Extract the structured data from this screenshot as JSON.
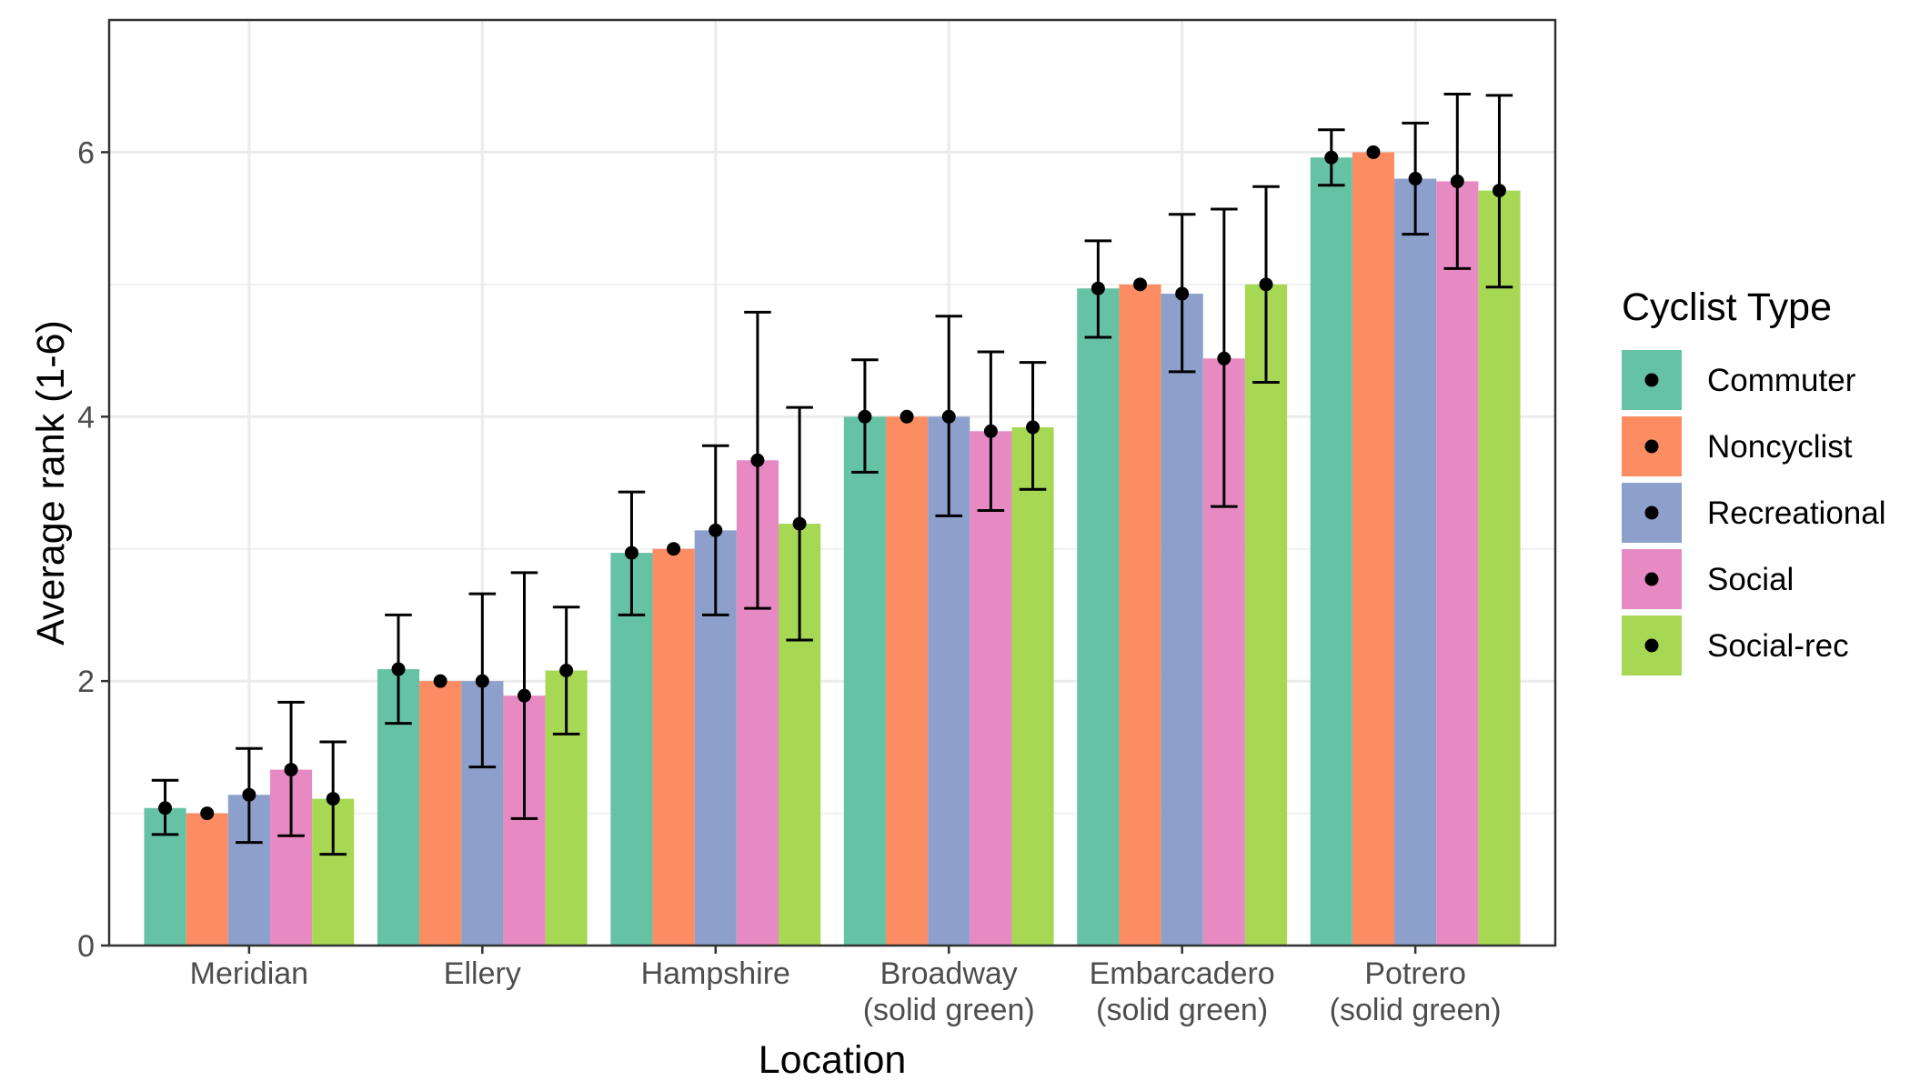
{
  "chart_data": {
    "type": "bar",
    "xlabel": "Location",
    "ylabel": "Average rank (1-6)",
    "ylim": [
      0,
      7
    ],
    "yticks": [
      0,
      2,
      4,
      6
    ],
    "grid": true,
    "legend_title": "Cyclist Type",
    "legend_position": "right",
    "categories": [
      [
        "Meridian"
      ],
      [
        "Ellery"
      ],
      [
        "Hampshire"
      ],
      [
        "Broadway",
        "(solid green)"
      ],
      [
        "Embarcadero",
        "(solid green)"
      ],
      [
        "Potrero",
        "(solid green)"
      ]
    ],
    "series": [
      {
        "name": "Commuter",
        "color": "#66C2A5",
        "values": [
          1.04,
          2.09,
          2.97,
          4.0,
          4.97,
          5.96
        ],
        "lower": [
          0.84,
          1.68,
          2.5,
          3.58,
          4.6,
          5.75
        ],
        "upper": [
          1.25,
          2.5,
          3.43,
          4.43,
          5.33,
          6.17
        ]
      },
      {
        "name": "Noncyclist",
        "color": "#FC8D62",
        "values": [
          1.0,
          2.0,
          3.0,
          4.0,
          5.0,
          6.0
        ],
        "lower": [
          1.0,
          2.0,
          3.0,
          4.0,
          5.0,
          6.0
        ],
        "upper": [
          1.0,
          2.0,
          3.0,
          4.0,
          5.0,
          6.0
        ]
      },
      {
        "name": "Recreational",
        "color": "#8DA0CB",
        "values": [
          1.14,
          2.0,
          3.14,
          4.0,
          4.93,
          5.8
        ],
        "lower": [
          0.78,
          1.35,
          2.5,
          3.25,
          4.34,
          5.38
        ],
        "upper": [
          1.49,
          2.66,
          3.78,
          4.76,
          5.53,
          6.22
        ]
      },
      {
        "name": "Social",
        "color": "#E78AC3",
        "values": [
          1.33,
          1.89,
          3.67,
          3.89,
          4.44,
          5.78
        ],
        "lower": [
          0.83,
          0.96,
          2.55,
          3.29,
          3.32,
          5.12
        ],
        "upper": [
          1.84,
          2.82,
          4.79,
          4.49,
          5.57,
          6.44
        ]
      },
      {
        "name": "Social-rec",
        "color": "#A6D854",
        "values": [
          1.11,
          2.08,
          3.19,
          3.92,
          5.0,
          5.71
        ],
        "lower": [
          0.69,
          1.6,
          2.31,
          3.45,
          4.26,
          4.98
        ],
        "upper": [
          1.54,
          2.56,
          4.07,
          4.41,
          5.74,
          6.43
        ]
      }
    ]
  }
}
